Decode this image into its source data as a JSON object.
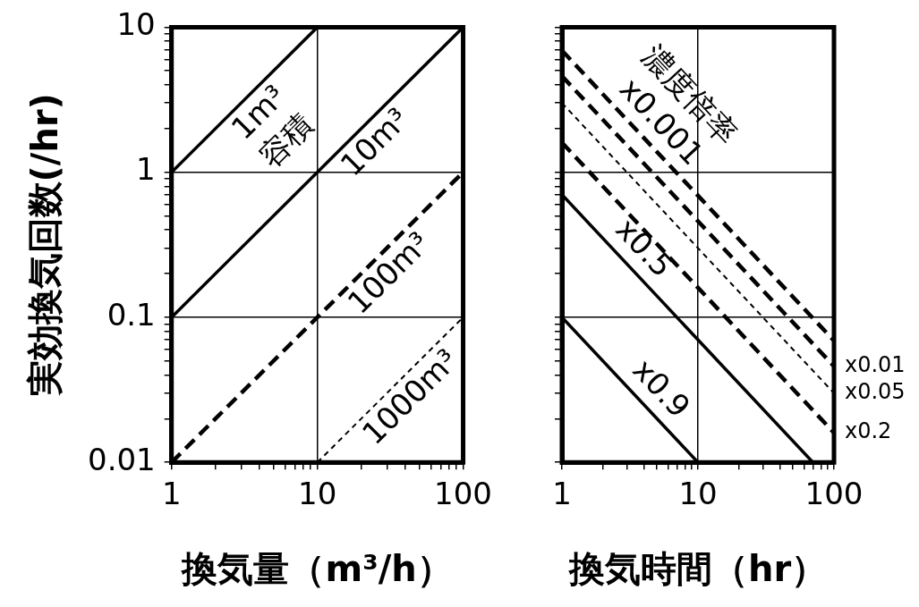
{
  "chart_data": [
    {
      "type": "line",
      "xlabel": "換気量（m³/h）",
      "ylabel": "実効換気回数(/hr)",
      "log": "xy",
      "grid": true,
      "legend": false,
      "xlim": [
        1,
        100
      ],
      "ylim": [
        0.01,
        10
      ],
      "xticks": [
        1,
        {
          "value": 2,
          "label": null
        },
        {
          "value": 3,
          "label": null
        },
        {
          "value": 4,
          "label": null
        },
        {
          "value": 5,
          "label": null
        },
        {
          "value": 6,
          "label": null
        },
        {
          "value": 7,
          "label": null
        },
        {
          "value": 8,
          "label": null
        },
        {
          "value": 9,
          "label": null
        },
        10,
        {
          "value": 20,
          "label": null
        },
        {
          "value": 30,
          "label": null
        },
        {
          "value": 40,
          "label": null
        },
        {
          "value": 50,
          "label": null
        },
        {
          "value": 60,
          "label": null
        },
        {
          "value": 70,
          "label": null
        },
        {
          "value": 80,
          "label": null
        },
        {
          "value": 90,
          "label": null
        },
        100
      ],
      "yticks": [
        {
          "value": 0.01,
          "label": "0.01"
        },
        {
          "value": 0.02,
          "label": null
        },
        {
          "value": 0.03,
          "label": null
        },
        {
          "value": 0.04,
          "label": null
        },
        {
          "value": 0.05,
          "label": null
        },
        {
          "value": 0.06,
          "label": null
        },
        {
          "value": 0.07,
          "label": null
        },
        {
          "value": 0.08,
          "label": null
        },
        {
          "value": 0.09,
          "label": null
        },
        {
          "value": 0.1,
          "label": "0.1"
        },
        {
          "value": 0.2,
          "label": null
        },
        {
          "value": 0.3,
          "label": null
        },
        {
          "value": 0.4,
          "label": null
        },
        {
          "value": 0.5,
          "label": null
        },
        {
          "value": 0.6,
          "label": null
        },
        {
          "value": 0.7,
          "label": null
        },
        {
          "value": 0.8,
          "label": null
        },
        {
          "value": 0.9,
          "label": null
        },
        1,
        {
          "value": 2,
          "label": null
        },
        {
          "value": 3,
          "label": null
        },
        {
          "value": 4,
          "label": null
        },
        {
          "value": 5,
          "label": null
        },
        {
          "value": 6,
          "label": null
        },
        {
          "value": 7,
          "label": null
        },
        {
          "value": 8,
          "label": null
        },
        {
          "value": 9,
          "label": null
        },
        10
      ],
      "series": [
        {
          "color": "#000000",
          "line_style": "solid",
          "x": [
            1,
            10
          ],
          "values": [
            1,
            10
          ]
        },
        {
          "color": "#000000",
          "line_style": "solid",
          "x": [
            1,
            100
          ],
          "values": [
            0.1,
            10
          ]
        },
        {
          "color": "#000000",
          "line_style": "dashed",
          "x": [
            1,
            100
          ],
          "values": [
            0.01,
            1
          ]
        },
        {
          "color": "#000000",
          "line_style": "dotted",
          "x": [
            10,
            100
          ],
          "values": [
            0.01,
            0.1
          ]
        }
      ],
      "annotations": [
        {
          "text": "1m³",
          "x": 3.2,
          "y": 3.2
        },
        {
          "text": "10m³",
          "x": 20,
          "y": 2
        },
        {
          "text": "100m³",
          "x": 25,
          "y": 0.25
        },
        {
          "text": "1000m³",
          "x": 35,
          "y": 0.035
        }
      ],
      "legend_title": "容積"
    },
    {
      "type": "line",
      "xlabel": "換気時間（hr）",
      "log": "xy",
      "grid": true,
      "legend": false,
      "tick_labels": "x",
      "xlim": [
        1,
        100
      ],
      "ylim": [
        0.01,
        10
      ],
      "xticks": [
        1,
        {
          "value": 2,
          "label": null
        },
        {
          "value": 3,
          "label": null
        },
        {
          "value": 4,
          "label": null
        },
        {
          "value": 5,
          "label": null
        },
        {
          "value": 6,
          "label": null
        },
        {
          "value": 7,
          "label": null
        },
        {
          "value": 8,
          "label": null
        },
        {
          "value": 9,
          "label": null
        },
        10,
        {
          "value": 20,
          "label": null
        },
        {
          "value": 30,
          "label": null
        },
        {
          "value": 40,
          "label": null
        },
        {
          "value": 50,
          "label": null
        },
        {
          "value": 60,
          "label": null
        },
        {
          "value": 70,
          "label": null
        },
        {
          "value": 80,
          "label": null
        },
        {
          "value": 90,
          "label": null
        },
        100
      ],
      "yticks": [
        {
          "value": 0.01,
          "label": null
        },
        {
          "value": 0.02,
          "label": null
        },
        {
          "value": 0.03,
          "label": null
        },
        {
          "value": 0.04,
          "label": null
        },
        {
          "value": 0.05,
          "label": null
        },
        {
          "value": 0.06,
          "label": null
        },
        {
          "value": 0.07,
          "label": null
        },
        {
          "value": 0.08,
          "label": null
        },
        {
          "value": 0.09,
          "label": null
        },
        {
          "value": 0.1,
          "label": null
        },
        {
          "value": 0.2,
          "label": null
        },
        {
          "value": 0.3,
          "label": null
        },
        {
          "value": 0.4,
          "label": null
        },
        {
          "value": 0.5,
          "label": null
        },
        {
          "value": 0.6,
          "label": null
        },
        {
          "value": 0.7,
          "label": null
        },
        {
          "value": 0.8,
          "label": null
        },
        {
          "value": 0.9,
          "label": null
        },
        {
          "value": 1,
          "label": null
        },
        {
          "value": 2,
          "label": null
        },
        {
          "value": 3,
          "label": null
        },
        {
          "value": 4,
          "label": null
        },
        {
          "value": 5,
          "label": null
        },
        {
          "value": 6,
          "label": null
        },
        {
          "value": 7,
          "label": null
        },
        {
          "value": 8,
          "label": null
        },
        {
          "value": 9,
          "label": null
        },
        {
          "value": 10,
          "label": null
        }
      ],
      "series": [
        {
          "color": "#000000",
          "line_style": "dashed",
          "x": [
            1,
            100
          ],
          "values": [
            6.9,
            0.069
          ]
        },
        {
          "name": "x0.01",
          "color": "#000000",
          "line_style": "dashed",
          "x": [
            1,
            100
          ],
          "values": [
            4.6,
            0.046
          ]
        },
        {
          "name": "x0.05",
          "color": "#000000",
          "line_style": "dotted",
          "x": [
            1,
            100
          ],
          "values": [
            3,
            0.03
          ]
        },
        {
          "name": "x0.2",
          "color": "#000000",
          "line_style": "dashed",
          "x": [
            1,
            100
          ],
          "values": [
            1.6,
            0.016
          ]
        },
        {
          "color": "#000000",
          "line_style": "solid",
          "x": [
            1,
            70
          ],
          "values": [
            0.7,
            0.01
          ]
        },
        {
          "color": "#000000",
          "line_style": "solid",
          "x": [
            1,
            10
          ],
          "values": [
            0.1,
            0.01
          ]
        }
      ],
      "annotations": [
        {
          "text": "x0.001",
          "x": 4,
          "y": 1.725
        },
        {
          "text": "x0.5",
          "x": 3,
          "y": 0.233
        },
        {
          "text": "x0.9",
          "x": 4,
          "y": 0.025
        }
      ],
      "legend_title": "濃度倍率"
    }
  ]
}
